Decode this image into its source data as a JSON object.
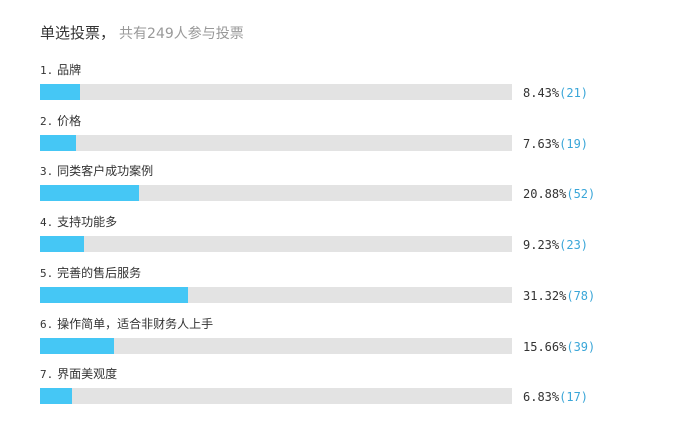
{
  "poll": {
    "type_label": "单选投票",
    "separator": "，",
    "participants_text": "共有249人参与投票",
    "bar_color": "#45c7f5",
    "track_color": "#e3e3e3",
    "count_color": "#3aa6d8",
    "options": [
      {
        "number": "1.",
        "label": "品牌",
        "percent_text": "8.43%",
        "count_text": "(21)",
        "fraction": 0.0843
      },
      {
        "number": "2.",
        "label": "价格",
        "percent_text": "7.63%",
        "count_text": "(19)",
        "fraction": 0.0763
      },
      {
        "number": "3.",
        "label": "同类客户成功案例",
        "percent_text": "20.88%",
        "count_text": "(52)",
        "fraction": 0.2088
      },
      {
        "number": "4.",
        "label": "支持功能多",
        "percent_text": "9.23%",
        "count_text": "(23)",
        "fraction": 0.0923
      },
      {
        "number": "5.",
        "label": "完善的售后服务",
        "percent_text": "31.32%",
        "count_text": "(78)",
        "fraction": 0.3132
      },
      {
        "number": "6.",
        "label": "操作简单，适合非财务人上手",
        "percent_text": "15.66%",
        "count_text": "(39)",
        "fraction": 0.1566
      },
      {
        "number": "7.",
        "label": "界面美观度",
        "percent_text": "6.83%",
        "count_text": "(17)",
        "fraction": 0.0683
      }
    ]
  }
}
